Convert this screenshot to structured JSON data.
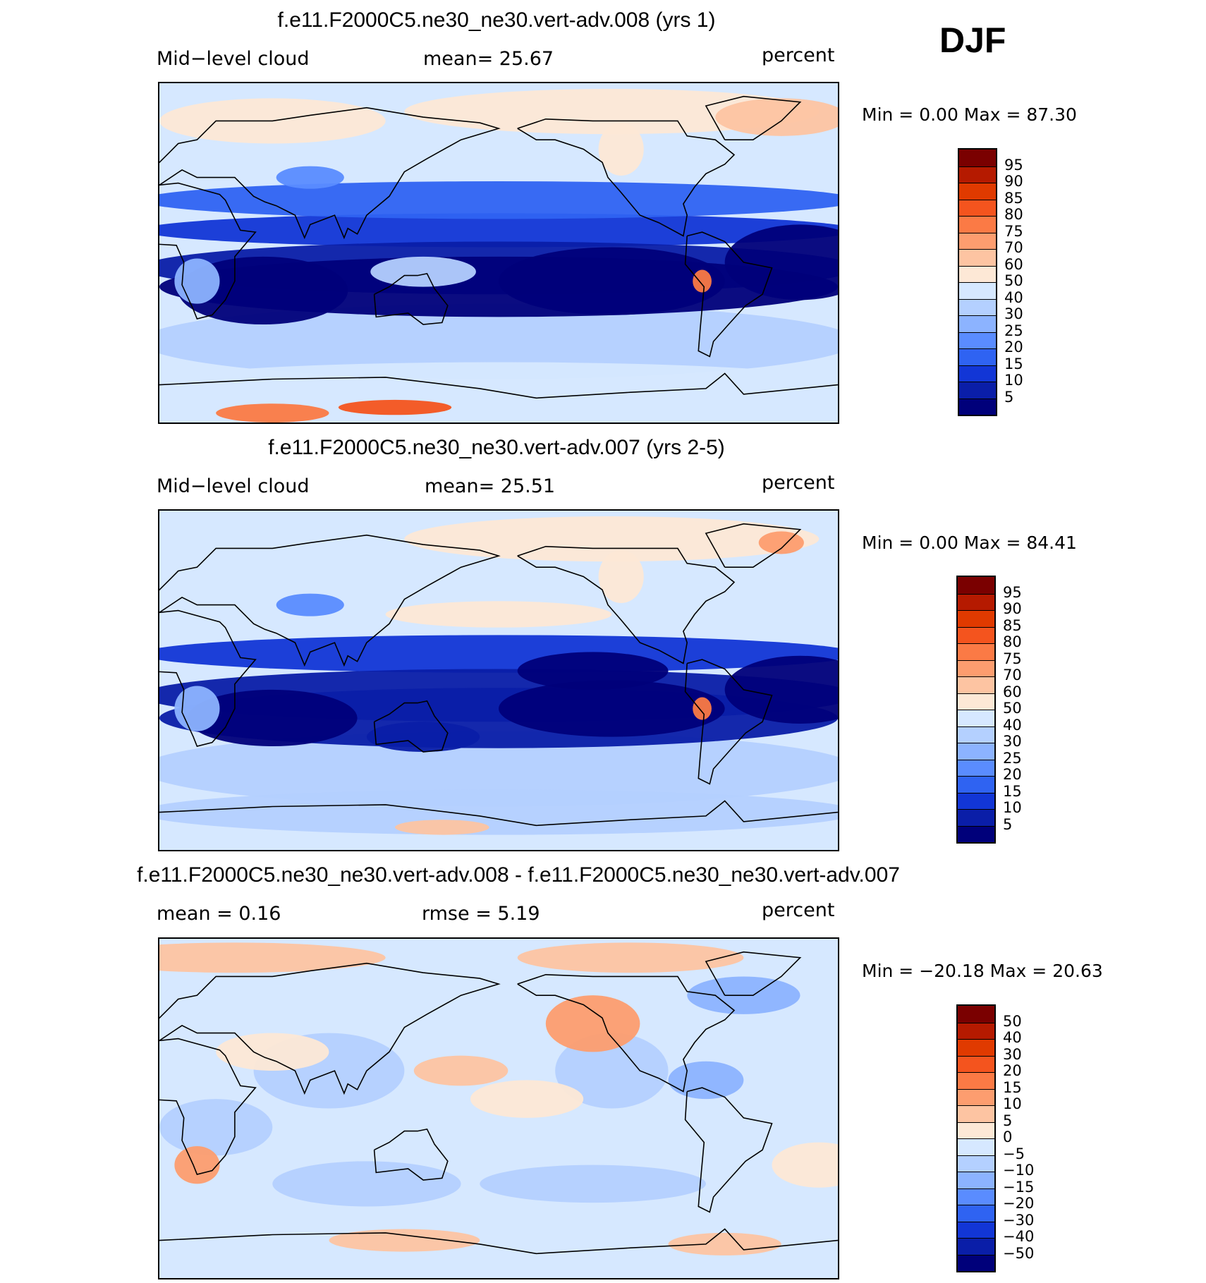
{
  "season": "DJF",
  "units": "percent",
  "panels": [
    {
      "title": "f.e11.F2000C5.ne30_ne30.vert-adv.008 (yrs 1)",
      "left_label": "Mid−level cloud",
      "mid_label": "mean=   25.67",
      "right_label": "percent",
      "min_max": "Min  =     0.00  Max  =    87.30",
      "colorbar": {
        "labels": [
          "95",
          "90",
          "85",
          "80",
          "75",
          "70",
          "60",
          "50",
          "40",
          "30",
          "25",
          "20",
          "15",
          "10",
          "5"
        ],
        "colors": [
          "#7a0000",
          "#b51a00",
          "#e03a00",
          "#f4541e",
          "#fb7a45",
          "#fd9d6f",
          "#fdc4a2",
          "#fde8d6",
          "#d6e8ff",
          "#b4d0ff",
          "#8cb3ff",
          "#5a8cff",
          "#2f63f2",
          "#1236d6",
          "#0a1ea8",
          "#00007a"
        ]
      },
      "field": "p1"
    },
    {
      "title": "f.e11.F2000C5.ne30_ne30.vert-adv.007 (yrs 2-5)",
      "left_label": "Mid−level cloud",
      "mid_label": "mean=   25.51",
      "right_label": "percent",
      "min_max": "Min  =     0.00  Max  =    84.41",
      "colorbar": {
        "labels": [
          "95",
          "90",
          "85",
          "80",
          "75",
          "70",
          "60",
          "50",
          "40",
          "30",
          "25",
          "20",
          "15",
          "10",
          "5"
        ],
        "colors": [
          "#7a0000",
          "#b51a00",
          "#e03a00",
          "#f4541e",
          "#fb7a45",
          "#fd9d6f",
          "#fdc4a2",
          "#fde8d6",
          "#d6e8ff",
          "#b4d0ff",
          "#8cb3ff",
          "#5a8cff",
          "#2f63f2",
          "#1236d6",
          "#0a1ea8",
          "#00007a"
        ]
      },
      "field": "p2"
    },
    {
      "title": "f.e11.F2000C5.ne30_ne30.vert-adv.008 - f.e11.F2000C5.ne30_ne30.vert-adv.007",
      "left_label": "mean  =     0.16",
      "mid_label": "rmse  =     5.19",
      "right_label": "percent",
      "min_max": "Min  =  −20.18  Max  =    20.63",
      "colorbar": {
        "labels": [
          "50",
          "40",
          "30",
          "20",
          "15",
          "10",
          "5",
          "0",
          "−5",
          "−10",
          "−15",
          "−20",
          "−30",
          "−40",
          "−50"
        ],
        "colors": [
          "#7a0000",
          "#b51a00",
          "#e03a00",
          "#f4541e",
          "#fb7a45",
          "#fd9d6f",
          "#fdc4a2",
          "#fde8d6",
          "#d6e8ff",
          "#b4d0ff",
          "#8cb3ff",
          "#5a8cff",
          "#2f63f2",
          "#1236d6",
          "#0a1ea8",
          "#00007a"
        ]
      },
      "field": "diff"
    }
  ]
}
